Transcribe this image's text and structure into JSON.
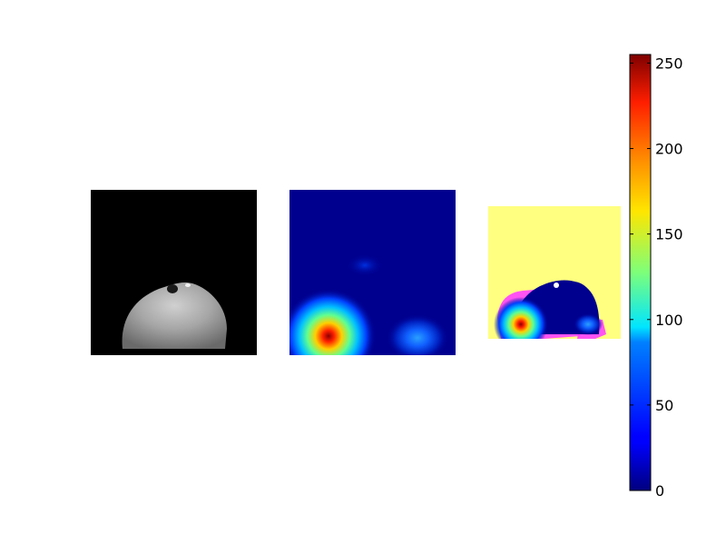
{
  "chart_data": {
    "type": "heatmap",
    "panels": [
      {
        "name": "grayscale-image",
        "colormap": "gray"
      },
      {
        "name": "heatmap",
        "colormap": "jet"
      },
      {
        "name": "overlay",
        "colormap": "jet"
      }
    ],
    "colorbar": {
      "min": 0,
      "max": 255,
      "ticks": [
        0,
        50,
        100,
        150,
        200,
        250
      ],
      "tick_labels": [
        "0",
        "50",
        "100",
        "150",
        "200",
        "250"
      ],
      "colormap": "jet"
    },
    "heatmap_hotspots": [
      {
        "location": "bottom-left",
        "peak_value": 255
      },
      {
        "location": "bottom-right",
        "peak_value": 70
      }
    ],
    "title": "",
    "xlabel": "",
    "ylabel": ""
  },
  "colors": {
    "background": "#ffffff",
    "jet_low": "#00007f",
    "jet_high": "#7f0000",
    "overlay_background": "#ffff80",
    "overlay_magenta": "#ff40ff"
  }
}
